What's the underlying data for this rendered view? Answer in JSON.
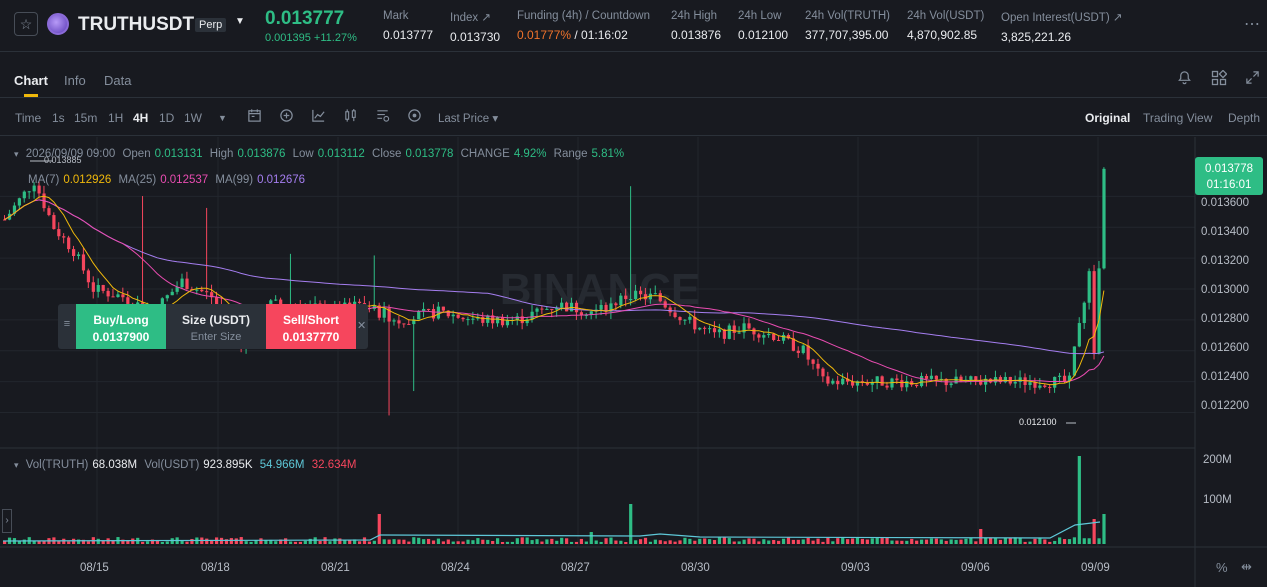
{
  "header": {
    "symbol": "TRUTHUSDT",
    "contract_type": "Perp",
    "last_price": "0.013777",
    "change": "0.001395 +11.27%",
    "stats": [
      {
        "label": "Mark",
        "value": "0.013777"
      },
      {
        "label": "Index ↗",
        "value": "0.013730"
      },
      {
        "label": "Funding (4h) / Countdown",
        "value_rate": "0.01777%",
        "value_countdown": "/ 01:16:02"
      },
      {
        "label": "24h High",
        "value": "0.013876"
      },
      {
        "label": "24h Low",
        "value": "0.012100"
      },
      {
        "label": "24h Vol(TRUTH)",
        "value": "377,707,395.00"
      },
      {
        "label": "24h Vol(USDT)",
        "value": "4,870,902.85"
      },
      {
        "label": "Open Interest(USDT) ↗",
        "value": "3,825,221.26"
      }
    ]
  },
  "tabs": {
    "chart": "Chart",
    "info": "Info",
    "data": "Data"
  },
  "toolbar": {
    "intervals": [
      "Time",
      "1s",
      "15m",
      "1H",
      "4H",
      "1D",
      "1W"
    ],
    "active_interval": "4H",
    "price_type": "Last Price ▾",
    "views": [
      "Original",
      "Trading View",
      "Depth"
    ],
    "active_view": "Original"
  },
  "legend": {
    "date": "2026/09/09 09:00",
    "open_label": "Open",
    "open": "0.013131",
    "high_label": "High",
    "high": "0.013876",
    "low_label": "Low",
    "low": "0.013112",
    "close_label": "Close",
    "close": "0.013778",
    "change_label": "CHANGE",
    "change": "4.92%",
    "range_label": "Range",
    "range": "5.81%",
    "ma7_label": "MA(7)",
    "ma7": "0.012926",
    "ma25_label": "MA(25)",
    "ma25": "0.012537",
    "ma99_label": "MA(99)",
    "ma99": "0.012676",
    "max_marker": "0.013885",
    "min_marker": "0.012100"
  },
  "volume_legend": {
    "vol_truth_label": "Vol(TRUTH)",
    "vol_truth": "68.038M",
    "vol_usdt_label": "Vol(USDT)",
    "vol_usdt": "923.895K",
    "vol_ma1": "54.966M",
    "vol_ma2": "32.634M"
  },
  "current_price": {
    "price": "0.013778",
    "countdown": "01:16:01"
  },
  "price_axis": [
    "0.013600",
    "0.013400",
    "0.013200",
    "0.013000",
    "0.012800",
    "0.012600",
    "0.012400",
    "0.012200"
  ],
  "volume_axis": [
    "200M",
    "100M"
  ],
  "date_axis": [
    "08/15",
    "08/18",
    "08/21",
    "08/24",
    "08/27",
    "08/30",
    "09/03",
    "09/06",
    "09/09"
  ],
  "watermark": "BINANCE",
  "trade_widget": {
    "buy_label": "Buy/Long",
    "buy_price": "0.0137900",
    "size_label": "Size (USDT)",
    "size_placeholder": "Enter Size",
    "sell_label": "Sell/Short",
    "sell_price": "0.0137770"
  },
  "colors": {
    "up": "#2ebd85",
    "down": "#f6465d",
    "ma7": "#f0b90b",
    "ma25": "#e94cb1",
    "ma99": "#a57ef0",
    "accent": "#f0b90b"
  },
  "chart_data": {
    "type": "candlestick",
    "interval": "4H",
    "ylim": [
      0.0121,
      0.0139
    ],
    "last": {
      "open": 0.013131,
      "high": 0.013876,
      "low": 0.013112,
      "close": 0.013778
    },
    "ma": {
      "ma7": 0.012926,
      "ma25": 0.012537,
      "ma99": 0.012676
    },
    "high_24h": 0.013876,
    "low_24h": 0.0121
  }
}
